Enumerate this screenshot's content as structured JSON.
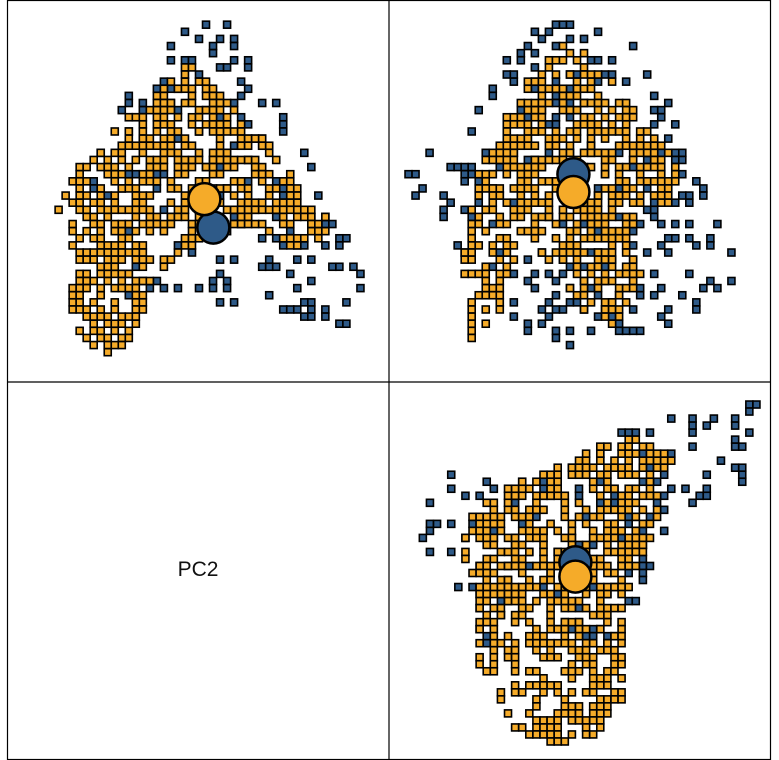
{
  "chart_data": {
    "type": "scatter",
    "layout": "pairs-plot",
    "diagonal_label": "PC2",
    "colors": {
      "group_a": "#2e5a88",
      "group_b": "#f5ab29",
      "outline": "#000000"
    },
    "panels": [
      {
        "id": "top-left",
        "xlim": [
          0,
          100
        ],
        "ylim": [
          0,
          100
        ],
        "centroids": [
          {
            "group": "group_a",
            "x": 54,
            "y": 60
          },
          {
            "group": "group_b",
            "x": 51.5,
            "y": 52
          }
        ],
        "clouds": [
          {
            "group": "group_a",
            "seed": 11,
            "density": 0.16,
            "polygon": [
              [
                45,
                3
              ],
              [
                58,
                1
              ],
              [
                70,
                20
              ],
              [
                84,
                45
              ],
              [
                100,
                80
              ],
              [
                95,
                88
              ],
              [
                60,
                82
              ],
              [
                30,
                80
              ],
              [
                18,
                45
              ],
              [
                32,
                20
              ]
            ]
          },
          {
            "group": "group_b",
            "seed": 23,
            "density": 0.55,
            "polygon": [
              [
                47,
                13
              ],
              [
                55,
                20
              ],
              [
                68,
                35
              ],
              [
                82,
                52
              ],
              [
                90,
                63
              ],
              [
                80,
                67
              ],
              [
                64,
                60
              ],
              [
                52,
                62
              ],
              [
                38,
                74
              ],
              [
                30,
                94
              ],
              [
                22,
                96
              ],
              [
                15,
                88
              ],
              [
                13,
                60
              ],
              [
                10,
                55
              ],
              [
                18,
                40
              ],
              [
                28,
                30
              ],
              [
                40,
                20
              ]
            ]
          }
        ]
      },
      {
        "id": "top-right",
        "xlim": [
          0,
          100
        ],
        "ylim": [
          0,
          100
        ],
        "centroids": [
          {
            "group": "group_a",
            "x": 49,
            "y": 45
          },
          {
            "group": "group_b",
            "x": 49,
            "y": 50
          }
        ],
        "clouds": [
          {
            "group": "group_a",
            "seed": 37,
            "density": 0.16,
            "polygon": [
              [
                40,
                3
              ],
              [
                58,
                1
              ],
              [
                70,
                10
              ],
              [
                82,
                40
              ],
              [
                100,
                70
              ],
              [
                90,
                80
              ],
              [
                70,
                90
              ],
              [
                40,
                95
              ],
              [
                20,
                70
              ],
              [
                0,
                50
              ],
              [
                5,
                40
              ],
              [
                20,
                35
              ],
              [
                25,
                15
              ]
            ]
          },
          {
            "group": "group_b",
            "seed": 41,
            "density": 0.55,
            "polygon": [
              [
                45,
                8
              ],
              [
                55,
                12
              ],
              [
                68,
                30
              ],
              [
                80,
                44
              ],
              [
                78,
                52
              ],
              [
                66,
                60
              ],
              [
                68,
                75
              ],
              [
                60,
                88
              ],
              [
                50,
                82
              ],
              [
                42,
                70
              ],
              [
                35,
                60
              ],
              [
                28,
                85
              ],
              [
                20,
                92
              ],
              [
                18,
                70
              ],
              [
                22,
                45
              ],
              [
                35,
                20
              ]
            ]
          }
        ]
      },
      {
        "id": "bottom-right",
        "xlim": [
          0,
          100
        ],
        "ylim": [
          0,
          100
        ],
        "centroids": [
          {
            "group": "group_a",
            "x": 49,
            "y": 47
          },
          {
            "group": "group_b",
            "x": 49,
            "y": 51
          }
        ],
        "clouds": [
          {
            "group": "group_a",
            "seed": 53,
            "density": 0.16,
            "polygon": [
              [
                60,
                10
              ],
              [
                80,
                5
              ],
              [
                100,
                2
              ],
              [
                95,
                25
              ],
              [
                75,
                35
              ],
              [
                70,
                50
              ],
              [
                60,
                70
              ],
              [
                40,
                70
              ],
              [
                22,
                70
              ],
              [
                5,
                40
              ],
              [
                10,
                20
              ],
              [
                30,
                25
              ],
              [
                45,
                20
              ]
            ]
          },
          {
            "group": "group_b",
            "seed": 67,
            "density": 0.55,
            "polygon": [
              [
                52,
                15
              ],
              [
                65,
                12
              ],
              [
                76,
                18
              ],
              [
                72,
                35
              ],
              [
                64,
                55
              ],
              [
                62,
                72
              ],
              [
                62,
                86
              ],
              [
                55,
                96
              ],
              [
                40,
                98
              ],
              [
                30,
                92
              ],
              [
                20,
                70
              ],
              [
                22,
                55
              ],
              [
                16,
                40
              ],
              [
                25,
                28
              ],
              [
                40,
                22
              ]
            ]
          }
        ]
      }
    ]
  }
}
